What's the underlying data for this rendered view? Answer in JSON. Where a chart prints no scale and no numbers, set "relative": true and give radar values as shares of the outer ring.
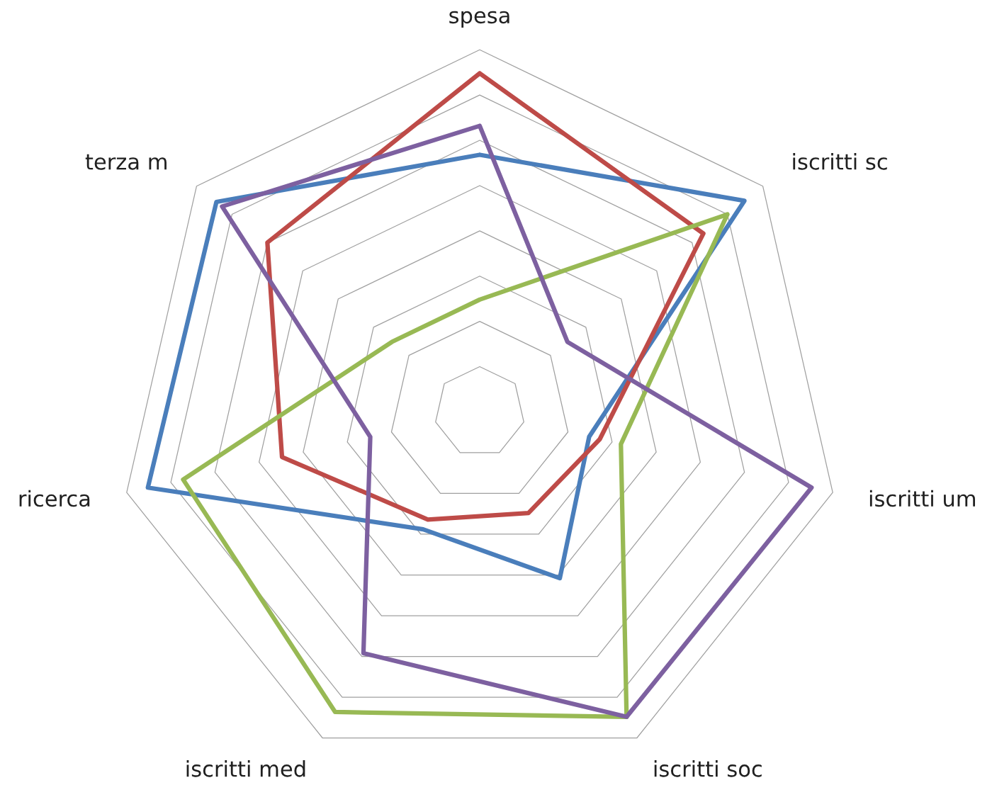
{
  "chart_data": {
    "type": "radar",
    "relative": true,
    "grid": true,
    "categories": [
      "spesa",
      "iscritti sc",
      "iscritti um",
      "iscritti soc",
      "iscritti med",
      "ricerca",
      "terza m"
    ],
    "series": [
      {
        "color": "#4a7ebb",
        "values": [
          0.71,
          0.935,
          0.31,
          0.51,
          0.36,
          0.94,
          0.93
        ]
      },
      {
        "color": "#be4b48",
        "values": [
          0.935,
          0.79,
          0.34,
          0.31,
          0.33,
          0.56,
          0.75
        ]
      },
      {
        "color": "#98b954",
        "values": [
          0.31,
          0.875,
          0.4,
          0.935,
          0.92,
          0.84,
          0.31
        ]
      },
      {
        "color": "#7d60a0",
        "values": [
          0.79,
          0.31,
          0.94,
          0.935,
          0.74,
          0.31,
          0.91
        ]
      }
    ]
  }
}
